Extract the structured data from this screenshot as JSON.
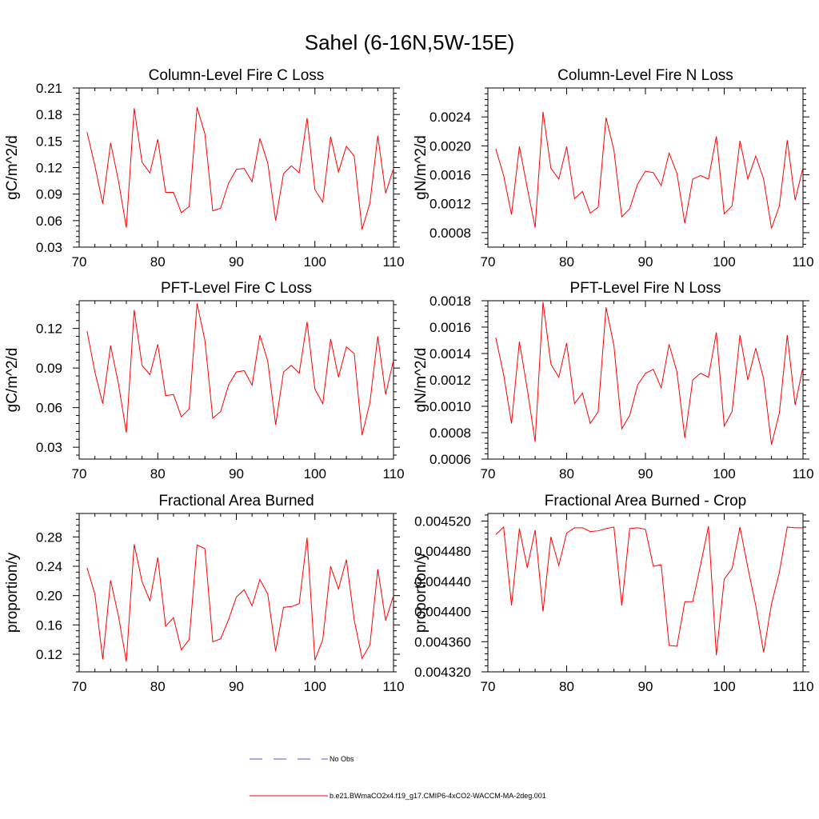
{
  "figure_title": "Sahel (6-16N,5W-15E)",
  "legend": [
    {
      "label": "No Obs",
      "color": "#5555cc",
      "style": "dashed"
    },
    {
      "label": "b.e21.BWmaCO2x4.f19_g17.CMIP6-4xCO2-WACCM-MA-2deg.001",
      "color": "#ff0000",
      "style": "solid"
    }
  ],
  "chart_data": [
    {
      "type": "line",
      "title": "Column-Level Fire C Loss",
      "ylabel": "gC/m^2/d",
      "xlabel": "",
      "xlim": [
        70,
        110
      ],
      "ylim": [
        0.03,
        0.21
      ],
      "x_ticks": [
        70,
        80,
        90,
        100,
        110
      ],
      "y_ticks": [
        0.03,
        0.06,
        0.09,
        0.12,
        0.15,
        0.18,
        0.21
      ],
      "y_tick_labels": [
        "0.03",
        "0.06",
        "0.09",
        "0.12",
        "0.15",
        "0.18",
        "0.21"
      ],
      "x_start": 71,
      "series": [
        {
          "color": "#ff0000",
          "values": [
            0.16,
            0.122,
            0.079,
            0.148,
            0.105,
            0.052,
            0.187,
            0.126,
            0.114,
            0.152,
            0.092,
            0.092,
            0.069,
            0.076,
            0.188,
            0.158,
            0.071,
            0.074,
            0.102,
            0.118,
            0.119,
            0.104,
            0.153,
            0.125,
            0.06,
            0.113,
            0.122,
            0.114,
            0.176,
            0.095,
            0.081,
            0.155,
            0.115,
            0.144,
            0.133,
            0.05,
            0.08,
            0.156,
            0.091,
            0.119
          ]
        }
      ]
    },
    {
      "type": "line",
      "title": "Column-Level Fire N Loss",
      "ylabel": "gN/m^2/d",
      "xlabel": "",
      "xlim": [
        70,
        110
      ],
      "ylim": [
        0.0006,
        0.0028
      ],
      "x_ticks": [
        70,
        80,
        90,
        100,
        110
      ],
      "y_ticks": [
        0.0008,
        0.0012,
        0.0016,
        0.002,
        0.0024
      ],
      "y_tick_labels": [
        "0.0008",
        "0.0012",
        "0.0016",
        "0.0020",
        "0.0024"
      ],
      "x_start": 71,
      "series": [
        {
          "color": "#ff0000",
          "values": [
            0.00196,
            0.00159,
            0.00105,
            0.00199,
            0.00142,
            0.00087,
            0.00247,
            0.00169,
            0.00154,
            0.00199,
            0.00127,
            0.00137,
            0.00107,
            0.00115,
            0.00239,
            0.00194,
            0.00102,
            0.00113,
            0.00147,
            0.00165,
            0.00163,
            0.00145,
            0.0019,
            0.00162,
            0.00093,
            0.00154,
            0.00159,
            0.00154,
            0.00213,
            0.00106,
            0.00117,
            0.00207,
            0.00154,
            0.00186,
            0.00154,
            0.00086,
            0.00117,
            0.00208,
            0.00125,
            0.0017
          ]
        }
      ]
    },
    {
      "type": "line",
      "title": "PFT-Level Fire C Loss",
      "ylabel": "gC/m^2/d",
      "xlabel": "",
      "xlim": [
        70,
        110
      ],
      "ylim": [
        0.021,
        0.141
      ],
      "x_ticks": [
        70,
        80,
        90,
        100,
        110
      ],
      "y_ticks": [
        0.03,
        0.06,
        0.09,
        0.12
      ],
      "y_tick_labels": [
        "0.03",
        "0.06",
        "0.09",
        "0.12"
      ],
      "x_start": 71,
      "series": [
        {
          "color": "#ff0000",
          "values": [
            0.118,
            0.087,
            0.063,
            0.107,
            0.078,
            0.041,
            0.134,
            0.092,
            0.085,
            0.108,
            0.069,
            0.07,
            0.053,
            0.059,
            0.139,
            0.111,
            0.052,
            0.057,
            0.077,
            0.087,
            0.088,
            0.077,
            0.115,
            0.095,
            0.047,
            0.087,
            0.092,
            0.086,
            0.125,
            0.074,
            0.063,
            0.112,
            0.083,
            0.106,
            0.101,
            0.039,
            0.064,
            0.114,
            0.07,
            0.096
          ]
        }
      ]
    },
    {
      "type": "line",
      "title": "PFT-Level Fire N Loss",
      "ylabel": "gN/m^2/d",
      "xlabel": "",
      "xlim": [
        70,
        110
      ],
      "ylim": [
        0.0006,
        0.0018
      ],
      "x_ticks": [
        70,
        80,
        90,
        100,
        110
      ],
      "y_ticks": [
        0.0006,
        0.0008,
        0.001,
        0.0012,
        0.0014,
        0.0016,
        0.0018
      ],
      "y_tick_labels": [
        "0.0006",
        "0.0008",
        "0.0010",
        "0.0012",
        "0.0014",
        "0.0016",
        "0.0018"
      ],
      "x_start": 71,
      "series": [
        {
          "color": "#ff0000",
          "values": [
            0.00152,
            0.00124,
            0.00087,
            0.00149,
            0.00113,
            0.00073,
            0.00179,
            0.00132,
            0.00122,
            0.00148,
            0.00102,
            0.0011,
            0.00087,
            0.00096,
            0.00175,
            0.00146,
            0.00083,
            0.00093,
            0.00116,
            0.00125,
            0.00128,
            0.00114,
            0.00147,
            0.00126,
            0.00076,
            0.0012,
            0.00125,
            0.00122,
            0.00156,
            0.00085,
            0.00096,
            0.00154,
            0.0012,
            0.00144,
            0.00121,
            0.00071,
            0.00095,
            0.00154,
            0.00101,
            0.0013
          ]
        }
      ]
    },
    {
      "type": "line",
      "title": "Fractional Area Burned",
      "ylabel": "proportion/y",
      "xlabel": "",
      "xlim": [
        70,
        110
      ],
      "ylim": [
        0.096,
        0.312
      ],
      "x_ticks": [
        70,
        80,
        90,
        100,
        110
      ],
      "y_ticks": [
        0.12,
        0.16,
        0.2,
        0.24,
        0.28
      ],
      "y_tick_labels": [
        "0.12",
        "0.16",
        "0.20",
        "0.24",
        "0.28"
      ],
      "x_start": 71,
      "series": [
        {
          "color": "#ff0000",
          "values": [
            0.238,
            0.202,
            0.113,
            0.221,
            0.172,
            0.11,
            0.27,
            0.219,
            0.193,
            0.252,
            0.158,
            0.17,
            0.126,
            0.14,
            0.269,
            0.264,
            0.137,
            0.141,
            0.167,
            0.198,
            0.208,
            0.186,
            0.222,
            0.202,
            0.124,
            0.184,
            0.185,
            0.189,
            0.279,
            0.112,
            0.14,
            0.24,
            0.209,
            0.249,
            0.167,
            0.114,
            0.133,
            0.236,
            0.166,
            0.2
          ]
        }
      ]
    },
    {
      "type": "line",
      "title": "Fractional Area Burned - Crop",
      "ylabel": "proportion/y",
      "xlabel": "",
      "xlim": [
        70,
        110
      ],
      "ylim": [
        0.00432,
        0.00453
      ],
      "x_ticks": [
        70,
        80,
        90,
        100,
        110
      ],
      "y_ticks": [
        0.00432,
        0.00436,
        0.0044,
        0.00444,
        0.00448,
        0.00452
      ],
      "y_tick_labels": [
        "0.004320",
        "0.004360",
        "0.004400",
        "0.004440",
        "0.004480",
        "0.004520"
      ],
      "x_start": 71,
      "series": [
        {
          "color": "#ff0000",
          "values": [
            0.004502,
            0.004512,
            0.004408,
            0.00451,
            0.004458,
            0.004508,
            0.0044,
            0.004499,
            0.004461,
            0.004504,
            0.004511,
            0.004511,
            0.004506,
            0.004507,
            0.00451,
            0.004512,
            0.004408,
            0.00451,
            0.004511,
            0.004509,
            0.00446,
            0.004462,
            0.004355,
            0.004354,
            0.004413,
            0.004413,
            0.004462,
            0.004513,
            0.004342,
            0.004443,
            0.004457,
            0.004512,
            0.004458,
            0.004408,
            0.004346,
            0.00441,
            0.004452,
            0.004512,
            0.004511,
            0.004511
          ]
        }
      ]
    }
  ]
}
